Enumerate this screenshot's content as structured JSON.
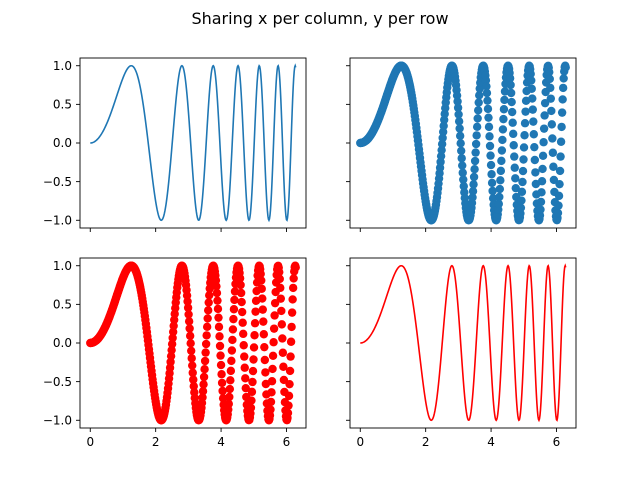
{
  "figure": {
    "suptitle": "Sharing x per column, y per row"
  },
  "chart_data": [
    {
      "type": "line",
      "function": "sin(x^2)",
      "x_range": [
        0,
        6.283
      ],
      "samples": 400,
      "color": "#1f77b4",
      "xlim": [
        -0.314,
        6.597
      ],
      "ylim": [
        -1.1,
        1.1
      ],
      "xticks": [
        0,
        2,
        4,
        6
      ],
      "yticks": [
        -1.0,
        -0.5,
        0.0,
        0.5,
        1.0
      ],
      "xticklabels": [
        "0",
        "2",
        "4",
        "6"
      ],
      "yticklabels": [
        "−1.0",
        "−0.5",
        "0.0",
        "0.5",
        "1.0"
      ],
      "show_xticklabels": false,
      "show_yticklabels": true
    },
    {
      "type": "scatter",
      "function": "sin(x^2)",
      "x_range": [
        0,
        6.283
      ],
      "samples": 400,
      "color": "#1f77b4",
      "xlim": [
        -0.314,
        6.597
      ],
      "ylim": [
        -1.1,
        1.1
      ],
      "xticks": [
        0,
        2,
        4,
        6
      ],
      "yticks": [
        -1.0,
        -0.5,
        0.0,
        0.5,
        1.0
      ],
      "xticklabels": [
        "0",
        "2",
        "4",
        "6"
      ],
      "yticklabels": [
        "−1.0",
        "−0.5",
        "0.0",
        "0.5",
        "1.0"
      ],
      "show_xticklabels": false,
      "show_yticklabels": false
    },
    {
      "type": "scatter",
      "function": "sin(x^2)",
      "x_range": [
        0,
        6.283
      ],
      "samples": 400,
      "color": "#ff0000",
      "xlim": [
        -0.314,
        6.597
      ],
      "ylim": [
        -1.1,
        1.1
      ],
      "xticks": [
        0,
        2,
        4,
        6
      ],
      "yticks": [
        -1.0,
        -0.5,
        0.0,
        0.5,
        1.0
      ],
      "xticklabels": [
        "0",
        "2",
        "4",
        "6"
      ],
      "yticklabels": [
        "−1.0",
        "−0.5",
        "0.0",
        "0.5",
        "1.0"
      ],
      "show_xticklabels": true,
      "show_yticklabels": true
    },
    {
      "type": "line",
      "function": "sin(x^2)",
      "x_range": [
        0,
        6.283
      ],
      "samples": 400,
      "color": "#ff0000",
      "xlim": [
        -0.314,
        6.597
      ],
      "ylim": [
        -1.1,
        1.1
      ],
      "xticks": [
        0,
        2,
        4,
        6
      ],
      "yticks": [
        -1.0,
        -0.5,
        0.0,
        0.5,
        1.0
      ],
      "xticklabels": [
        "0",
        "2",
        "4",
        "6"
      ],
      "yticklabels": [
        "−1.0",
        "−0.5",
        "0.0",
        "0.5",
        "1.0"
      ],
      "show_xticklabels": true,
      "show_yticklabels": false
    }
  ]
}
